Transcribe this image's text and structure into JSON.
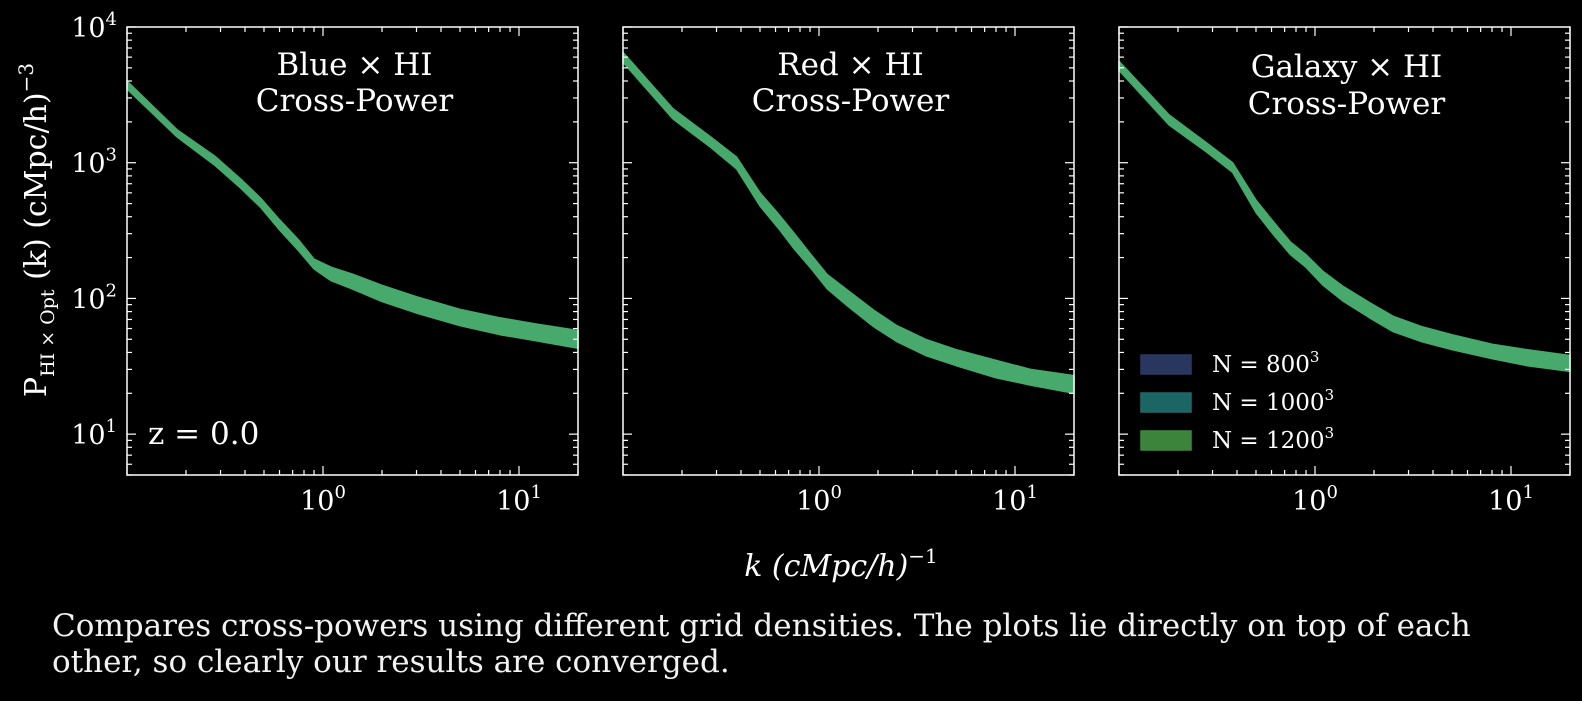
{
  "figure": {
    "xlabel": "k (cMpc/h)",
    "xlabel_exp": "−1",
    "ylabel_main": "P",
    "ylabel_sub": "HI × Opt",
    "ylabel_rest": " (k) (cMpc/h)",
    "ylabel_exp": "−3",
    "redshift": "z = 0.0",
    "caption": "Compares cross-powers using different grid densities. The plots lie directly on top of each other, so clearly our results are converged."
  },
  "legend": {
    "placement": "lower-left of third panel",
    "items": [
      {
        "base": "N = 800",
        "exp": "3",
        "color": "#2b3a63"
      },
      {
        "base": "N = 1000",
        "exp": "3",
        "color": "#1e6a6a"
      },
      {
        "base": "N = 1200",
        "exp": "3",
        "color": "#3f8a3f"
      }
    ]
  },
  "colors": {
    "band": "#48a96c",
    "background": "#000000",
    "axes": "#ffffff"
  },
  "chart_data": [
    {
      "type": "area",
      "title_line1": "Blue × HI",
      "title_line2": "Cross-Power",
      "xscale": "log",
      "yscale": "log",
      "xlim": [
        0.1,
        20
      ],
      "ylim": [
        5,
        10000
      ],
      "x_ticks": [
        {
          "base": "10",
          "exp": "0"
        },
        {
          "base": "10",
          "exp": "1"
        }
      ],
      "y_ticks": [
        {
          "base": "10",
          "exp": "1"
        },
        {
          "base": "10",
          "exp": "2"
        },
        {
          "base": "10",
          "exp": "3"
        },
        {
          "base": "10",
          "exp": "4"
        }
      ],
      "x": [
        0.1,
        0.18,
        0.28,
        0.38,
        0.48,
        0.6,
        0.75,
        0.9,
        1.1,
        1.4,
        2.0,
        3.0,
        5.0,
        8.0,
        12.0,
        20.0
      ],
      "y_low": [
        3500,
        1550,
        960,
        650,
        470,
        320,
        225,
        165,
        135,
        118,
        95,
        78,
        63,
        54,
        49,
        43
      ],
      "y_high": [
        4000,
        1750,
        1120,
        760,
        550,
        380,
        270,
        195,
        170,
        152,
        125,
        103,
        83,
        72,
        65,
        58
      ],
      "series": [
        {
          "name": "N = 800³"
        },
        {
          "name": "N = 1000³"
        },
        {
          "name": "N = 1200³"
        }
      ]
    },
    {
      "type": "area",
      "title_line1": "Red × HI",
      "title_line2": "Cross-Power",
      "xscale": "log",
      "yscale": "log",
      "xlim": [
        0.1,
        20
      ],
      "ylim": [
        5,
        10000
      ],
      "x_ticks": [
        {
          "base": "10",
          "exp": "0"
        },
        {
          "base": "10",
          "exp": "1"
        }
      ],
      "y_ticks": [],
      "x": [
        0.1,
        0.18,
        0.28,
        0.38,
        0.5,
        0.62,
        0.75,
        0.9,
        1.1,
        1.4,
        1.9,
        2.5,
        3.5,
        5.0,
        8.0,
        12.0,
        20.0
      ],
      "y_low": [
        5500,
        2100,
        1300,
        900,
        480,
        330,
        230,
        170,
        118,
        88,
        62,
        48,
        38,
        32,
        26,
        23,
        20
      ],
      "y_high": [
        6500,
        2500,
        1550,
        1100,
        600,
        420,
        300,
        215,
        150,
        115,
        82,
        63,
        50,
        42,
        35,
        30,
        27
      ],
      "series": [
        {
          "name": "N = 800³"
        },
        {
          "name": "N = 1000³"
        },
        {
          "name": "N = 1200³"
        }
      ]
    },
    {
      "type": "area",
      "title_line1": "Galaxy × HI",
      "title_line2": "Cross-Power",
      "xscale": "log",
      "yscale": "log",
      "xlim": [
        0.1,
        20
      ],
      "ylim": [
        5,
        10000
      ],
      "x_ticks": [
        {
          "base": "10",
          "exp": "0"
        },
        {
          "base": "10",
          "exp": "1"
        }
      ],
      "y_ticks": [],
      "x": [
        0.1,
        0.18,
        0.28,
        0.38,
        0.5,
        0.62,
        0.75,
        0.9,
        1.1,
        1.4,
        1.9,
        2.5,
        3.5,
        5.0,
        8.0,
        12.0,
        20.0
      ],
      "y_low": [
        4800,
        1900,
        1200,
        850,
        430,
        290,
        210,
        170,
        125,
        95,
        72,
        57,
        48,
        42,
        36,
        32,
        29
      ],
      "y_high": [
        5600,
        2250,
        1400,
        1000,
        530,
        360,
        260,
        210,
        158,
        122,
        93,
        74,
        62,
        54,
        46,
        42,
        38
      ],
      "series": [
        {
          "name": "N = 800³"
        },
        {
          "name": "N = 1000³"
        },
        {
          "name": "N = 1200³"
        }
      ]
    }
  ]
}
